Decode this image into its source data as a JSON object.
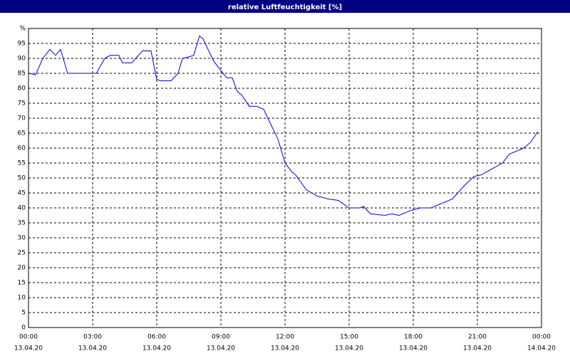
{
  "chart_data": {
    "type": "line",
    "title": "relative Luftfeuchtigkeit [%]",
    "x": [
      0,
      0.33,
      0.67,
      1,
      1.27,
      1.5,
      1.83,
      3.17,
      3.57,
      3.83,
      4.23,
      4.4,
      4.83,
      5.33,
      5.73,
      6,
      6.17,
      6.67,
      7,
      7.2,
      7.5,
      7.73,
      8,
      8.17,
      8.4,
      8.67,
      9,
      9.27,
      9.53,
      9.77,
      10,
      10.33,
      10.67,
      11,
      11.33,
      11.67,
      12,
      12.33,
      12.5,
      13,
      13.5,
      14,
      14.5,
      15,
      15.5,
      15.67,
      16,
      16.67,
      17,
      17.33,
      17.83,
      18.33,
      18.83,
      19.33,
      19.83,
      20.33,
      20.83,
      21.17,
      21.67,
      22.17,
      22.5,
      23.17,
      23.5,
      23.83
    ],
    "series": [
      {
        "name": "relative Luftfeuchtigkeit",
        "color": "#0000cc",
        "values": [
          85,
          84.5,
          90,
          93,
          91,
          93,
          85,
          85,
          90,
          91,
          91,
          88.5,
          88.5,
          92.5,
          92.5,
          83,
          82.5,
          82.5,
          85,
          90,
          90.5,
          91,
          97.5,
          96.5,
          93,
          89,
          86,
          83.5,
          83.5,
          79,
          77.5,
          74,
          74,
          73,
          68,
          63,
          55,
          52,
          51,
          46,
          44,
          43,
          42.5,
          40,
          40,
          40.5,
          38,
          37.5,
          38,
          37.5,
          39,
          40,
          40,
          41.5,
          43,
          47,
          50.5,
          51,
          53,
          55,
          58,
          60,
          62,
          65.5
        ]
      }
    ],
    "xlim": [
      0,
      24
    ],
    "xticks": [
      {
        "value": 0,
        "label": "00:00"
      },
      {
        "value": 3,
        "label": "03:00"
      },
      {
        "value": 6,
        "label": "06:00"
      },
      {
        "value": 9,
        "label": "09:00"
      },
      {
        "value": 12,
        "label": "12:00"
      },
      {
        "value": 15,
        "label": "15:00"
      },
      {
        "value": 18,
        "label": "18:00"
      },
      {
        "value": 21,
        "label": "21:00"
      },
      {
        "value": 24,
        "label": "00:00"
      }
    ],
    "xtick_dates": [
      "13.04.20",
      "13.04.20",
      "13.04.20",
      "13.04.20",
      "13.04.20",
      "13.04.20",
      "13.04.20",
      "13.04.20",
      "14.04.20"
    ],
    "ylim": [
      0,
      100
    ],
    "yticks": [
      0,
      5,
      10,
      15,
      20,
      25,
      30,
      35,
      40,
      45,
      50,
      55,
      60,
      65,
      70,
      75,
      80,
      85,
      90,
      95,
      {
        "value": 100,
        "label": "%"
      }
    ],
    "grid": true
  }
}
